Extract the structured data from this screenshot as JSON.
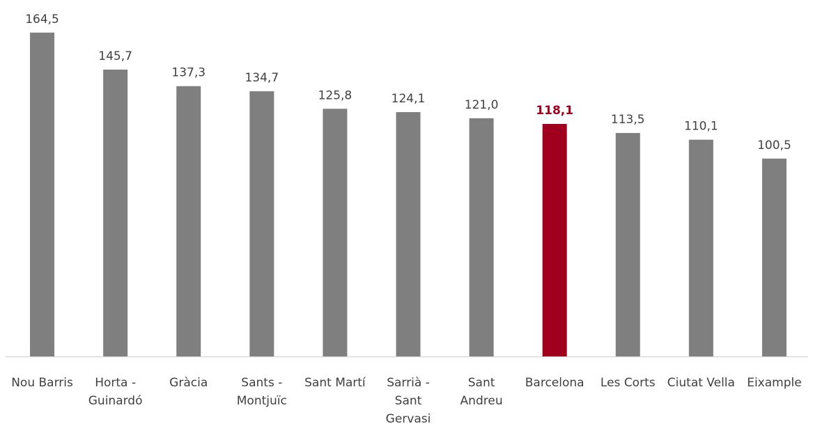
{
  "chart_data": {
    "type": "bar",
    "categories": [
      "Nou Barris",
      "Horta - Guinardó",
      "Gràcia",
      "Sants - Montjuïc",
      "Sant Martí",
      "Sarrià - Sant Gervasi",
      "Sant Andreu",
      "Barcelona",
      "Les Corts",
      "Ciutat Vella",
      "Eixample"
    ],
    "values": [
      164.5,
      145.7,
      137.3,
      134.7,
      125.8,
      124.1,
      121.0,
      118.1,
      113.5,
      110.1,
      100.5
    ],
    "value_labels": [
      "164,5",
      "145,7",
      "137,3",
      "134,7",
      "125,8",
      "124,1",
      "121,0",
      "118,1",
      "113,5",
      "110,1",
      "100,5"
    ],
    "color": "#7f7f7f",
    "colors": [
      "#7f7f7f",
      "#7f7f7f",
      "#7f7f7f",
      "#7f7f7f",
      "#7f7f7f",
      "#7f7f7f",
      "#7f7f7f",
      "#a0001e",
      "#7f7f7f",
      "#7f7f7f",
      "#7f7f7f"
    ],
    "ylim": [
      0,
      180
    ]
  }
}
